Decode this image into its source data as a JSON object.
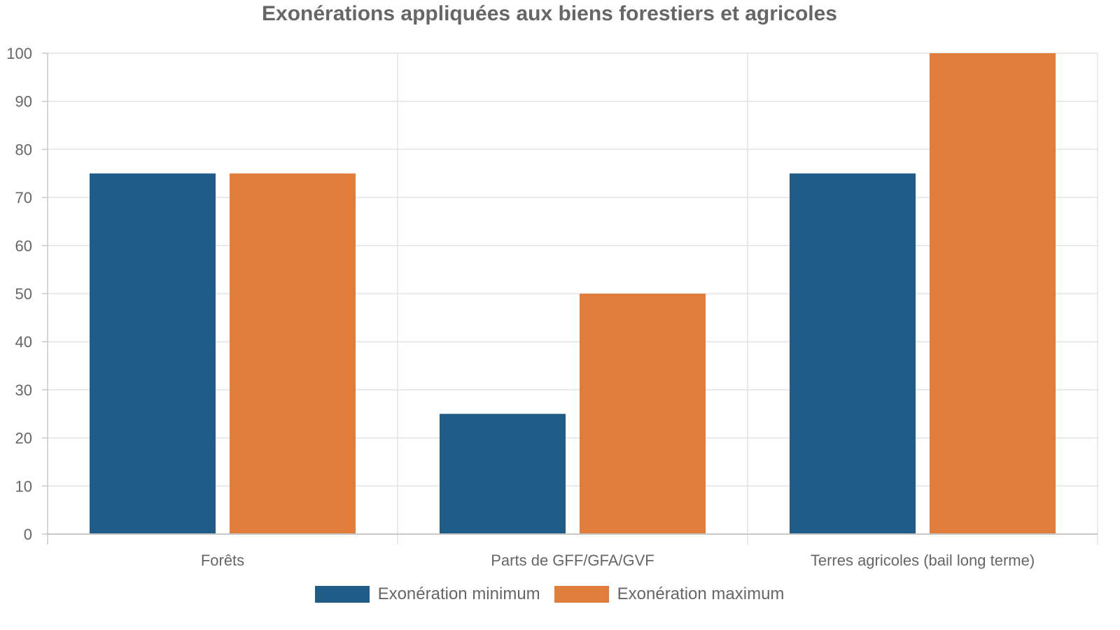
{
  "chart_data": {
    "type": "bar",
    "title": "Exonérations appliquées aux biens forestiers et agricoles",
    "categories": [
      "Forêts",
      "Parts de GFF/GFA/GVF",
      "Terres agricoles (bail long terme)"
    ],
    "series": [
      {
        "name": "Exonération minimum",
        "values": [
          75,
          25,
          75
        ],
        "color": "#1f5c87"
      },
      {
        "name": "Exonération maximum",
        "values": [
          75,
          50,
          100
        ],
        "color": "#e07c3c"
      }
    ],
    "ylim": [
      0,
      100
    ],
    "yticks": [
      "0",
      "10",
      "20",
      "30",
      "40",
      "50",
      "60",
      "70",
      "80",
      "90",
      "100"
    ],
    "grid": true,
    "legend": "bottom"
  }
}
